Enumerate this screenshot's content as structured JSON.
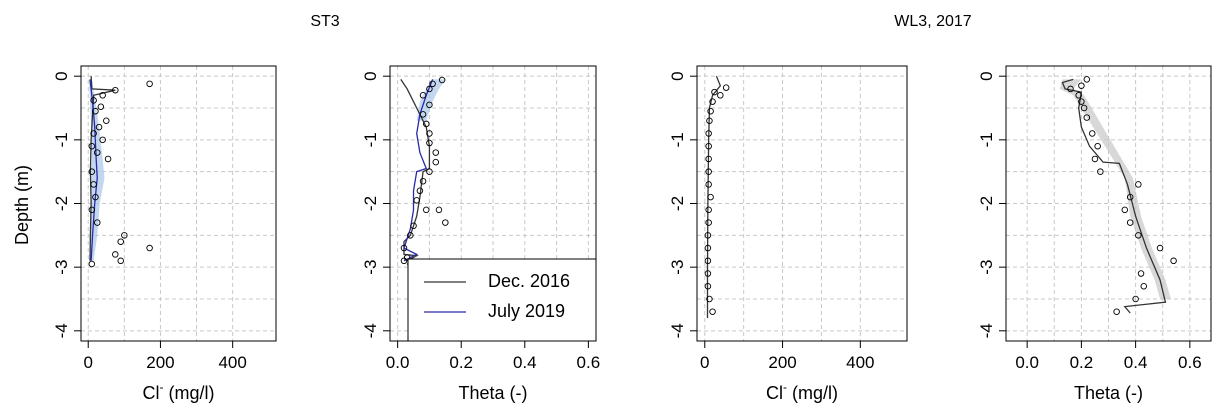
{
  "figure": {
    "group_titles": [
      "ST3",
      "WL3, 2017"
    ],
    "y_axis_label": "Depth (m)"
  },
  "legend": {
    "entries": [
      {
        "label": "Dec. 2016",
        "color": "#333333"
      },
      {
        "label": "July 2019",
        "color": "#2a2aa8"
      }
    ]
  },
  "colors": {
    "dec_line": "#333333",
    "july_line": "#2a2aa8",
    "band_blue": "#a9c8ea",
    "band_grey": "#c8c8c8",
    "grid": "#c8c8c8"
  },
  "chart_data": [
    {
      "type": "line",
      "group": "ST3",
      "xlabel_main": "Cl",
      "xlabel_sup": "-",
      "xlabel_rest": " (mg/l)",
      "xlim": [
        0,
        500
      ],
      "ylim": [
        -4,
        0
      ],
      "xticks": [
        0,
        200,
        400
      ],
      "xtick_labels": [
        "0",
        "200",
        "400"
      ],
      "yticks": [
        0,
        -1,
        -2,
        -3,
        -4
      ],
      "ytick_labels": [
        "0",
        "-1",
        "-2",
        "-3",
        "-4"
      ],
      "grid": true,
      "observed_points": [
        [
          170,
          -0.12
        ],
        [
          75,
          -0.22
        ],
        [
          40,
          -0.3
        ],
        [
          15,
          -0.38
        ],
        [
          35,
          -0.48
        ],
        [
          20,
          -0.55
        ],
        [
          50,
          -0.7
        ],
        [
          30,
          -0.8
        ],
        [
          15,
          -0.9
        ],
        [
          40,
          -1.0
        ],
        [
          10,
          -1.1
        ],
        [
          25,
          -1.2
        ],
        [
          55,
          -1.3
        ],
        [
          10,
          -1.5
        ],
        [
          15,
          -1.7
        ],
        [
          20,
          -1.9
        ],
        [
          10,
          -2.1
        ],
        [
          25,
          -2.3
        ],
        [
          100,
          -2.5
        ],
        [
          90,
          -2.6
        ],
        [
          170,
          -2.7
        ],
        [
          75,
          -2.8
        ],
        [
          90,
          -2.9
        ],
        [
          10,
          -2.95
        ]
      ],
      "series": [
        {
          "name": "Dec. 2016",
          "color": "#333333",
          "points": [
            [
              8,
              0
            ],
            [
              10,
              -0.2
            ],
            [
              75,
              -0.22
            ],
            [
              15,
              -0.3
            ],
            [
              12,
              -0.6
            ],
            [
              8,
              -1.0
            ],
            [
              6,
              -1.5
            ],
            [
              8,
              -2.0
            ],
            [
              6,
              -2.5
            ],
            [
              5,
              -2.9
            ]
          ]
        },
        {
          "name": "July 2019",
          "color": "#2a2aa8",
          "points": [
            [
              5,
              -0.05
            ],
            [
              12,
              -0.4
            ],
            [
              18,
              -0.8
            ],
            [
              22,
              -1.3
            ],
            [
              25,
              -1.6
            ],
            [
              18,
              -2.0
            ],
            [
              12,
              -2.5
            ],
            [
              8,
              -2.9
            ]
          ]
        }
      ],
      "band": {
        "color": "#a9c8ea",
        "left": [
          [
            2,
            -0.05
          ],
          [
            5,
            -0.4
          ],
          [
            8,
            -0.8
          ],
          [
            10,
            -1.3
          ],
          [
            8,
            -1.6
          ],
          [
            6,
            -2.0
          ],
          [
            4,
            -2.5
          ],
          [
            3,
            -2.9
          ]
        ],
        "right": [
          [
            10,
            -0.05
          ],
          [
            20,
            -0.4
          ],
          [
            30,
            -0.8
          ],
          [
            40,
            -1.3
          ],
          [
            45,
            -1.6
          ],
          [
            32,
            -2.0
          ],
          [
            25,
            -2.5
          ],
          [
            15,
            -2.9
          ]
        ]
      }
    },
    {
      "type": "line",
      "group": "ST3",
      "xlabel_main": "Theta (-)",
      "xlabel_sup": "",
      "xlabel_rest": "",
      "xlim": [
        0,
        0.6
      ],
      "ylim": [
        -4,
        0
      ],
      "xticks": [
        0,
        0.2,
        0.4,
        0.6
      ],
      "xtick_labels": [
        "0.0",
        "0.2",
        "0.4",
        "0.6"
      ],
      "yticks": [
        0,
        -1,
        -2,
        -3,
        -4
      ],
      "ytick_labels": [
        "0",
        "-1",
        "-2",
        "-3",
        "-4"
      ],
      "grid": true,
      "has_legend": true,
      "observed_points": [
        [
          0.14,
          -0.06
        ],
        [
          0.11,
          -0.12
        ],
        [
          0.1,
          -0.2
        ],
        [
          0.08,
          -0.3
        ],
        [
          0.1,
          -0.45
        ],
        [
          0.08,
          -0.6
        ],
        [
          0.09,
          -0.75
        ],
        [
          0.1,
          -0.9
        ],
        [
          0.1,
          -1.05
        ],
        [
          0.12,
          -1.2
        ],
        [
          0.12,
          -1.35
        ],
        [
          0.1,
          -1.5
        ],
        [
          0.08,
          -1.65
        ],
        [
          0.07,
          -1.8
        ],
        [
          0.06,
          -1.95
        ],
        [
          0.09,
          -2.1
        ],
        [
          0.13,
          -2.1
        ],
        [
          0.15,
          -2.3
        ],
        [
          0.05,
          -2.35
        ],
        [
          0.04,
          -2.5
        ],
        [
          0.02,
          -2.7
        ],
        [
          0.03,
          -2.85
        ],
        [
          0.02,
          -2.9
        ],
        [
          0.04,
          -2.95
        ]
      ],
      "series": [
        {
          "name": "Dec. 2016",
          "color": "#333333",
          "points": [
            [
              0.01,
              -0.05
            ],
            [
              0.03,
              -0.2
            ],
            [
              0.06,
              -0.5
            ],
            [
              0.09,
              -0.8
            ],
            [
              0.1,
              -1.1
            ],
            [
              0.1,
              -1.45
            ],
            [
              0.08,
              -1.5
            ],
            [
              0.07,
              -1.9
            ],
            [
              0.06,
              -2.2
            ],
            [
              0.04,
              -2.5
            ],
            [
              0.02,
              -2.6
            ],
            [
              0.02,
              -2.8
            ],
            [
              0.06,
              -2.82
            ],
            [
              0.03,
              -2.9
            ]
          ]
        },
        {
          "name": "July 2019",
          "color": "#2a2aa8",
          "points": [
            [
              0.11,
              -0.05
            ],
            [
              0.09,
              -0.3
            ],
            [
              0.07,
              -0.6
            ],
            [
              0.06,
              -0.9
            ],
            [
              0.07,
              -1.2
            ],
            [
              0.09,
              -1.45
            ],
            [
              0.06,
              -1.5
            ],
            [
              0.05,
              -1.8
            ],
            [
              0.05,
              -2.1
            ],
            [
              0.04,
              -2.4
            ],
            [
              0.03,
              -2.55
            ],
            [
              0.02,
              -2.7
            ],
            [
              0.06,
              -2.8
            ],
            [
              0.02,
              -2.9
            ]
          ]
        }
      ],
      "band": {
        "color": "#a9c8ea",
        "left": [
          [
            0.11,
            -0.05
          ],
          [
            0.09,
            -0.2
          ],
          [
            0.07,
            -0.4
          ],
          [
            0.06,
            -0.7
          ]
        ],
        "right": [
          [
            0.15,
            -0.05
          ],
          [
            0.13,
            -0.2
          ],
          [
            0.11,
            -0.4
          ],
          [
            0.09,
            -0.7
          ]
        ]
      }
    },
    {
      "type": "line",
      "group": "WL3, 2017",
      "xlabel_main": "Cl",
      "xlabel_sup": "-",
      "xlabel_rest": " (mg/l)",
      "xlim": [
        0,
        500
      ],
      "ylim": [
        -4,
        0
      ],
      "xticks": [
        0,
        200,
        400
      ],
      "xtick_labels": [
        "0",
        "200",
        "400"
      ],
      "yticks": [
        0,
        -1,
        -2,
        -3,
        -4
      ],
      "ytick_labels": [
        "0",
        "-1",
        "-2",
        "-3",
        "-4"
      ],
      "grid": true,
      "observed_points": [
        [
          55,
          -0.18
        ],
        [
          40,
          -0.3
        ],
        [
          25,
          -0.25
        ],
        [
          20,
          -0.4
        ],
        [
          15,
          -0.55
        ],
        [
          12,
          -0.7
        ],
        [
          10,
          -0.9
        ],
        [
          10,
          -1.1
        ],
        [
          10,
          -1.3
        ],
        [
          10,
          -1.5
        ],
        [
          10,
          -1.7
        ],
        [
          15,
          -1.9
        ],
        [
          10,
          -2.1
        ],
        [
          10,
          -2.3
        ],
        [
          8,
          -2.5
        ],
        [
          8,
          -2.7
        ],
        [
          8,
          -2.9
        ],
        [
          8,
          -3.1
        ],
        [
          8,
          -3.3
        ],
        [
          12,
          -3.5
        ],
        [
          20,
          -3.7
        ]
      ],
      "series": [
        {
          "name": "Dec. 2016",
          "color": "#333333",
          "points": [
            [
              30,
              0
            ],
            [
              40,
              -0.15
            ],
            [
              20,
              -0.3
            ],
            [
              12,
              -0.5
            ],
            [
              10,
              -1.0
            ],
            [
              8,
              -2.0
            ],
            [
              7,
              -3.0
            ],
            [
              7,
              -3.8
            ]
          ]
        }
      ]
    },
    {
      "type": "line",
      "group": "WL3, 2017",
      "xlabel_main": "Theta (-)",
      "xlabel_sup": "",
      "xlabel_rest": "",
      "xlim": [
        -0.05,
        0.65
      ],
      "ylim": [
        -4,
        0
      ],
      "xticks": [
        0,
        0.2,
        0.4,
        0.6
      ],
      "xtick_labels": [
        "0.0",
        "0.2",
        "0.4",
        "0.6"
      ],
      "yticks": [
        0,
        -1,
        -2,
        -3,
        -4
      ],
      "ytick_labels": [
        "0",
        "-1",
        "-2",
        "-3",
        "-4"
      ],
      "grid": true,
      "observed_points": [
        [
          0.22,
          -0.05
        ],
        [
          0.2,
          -0.15
        ],
        [
          0.16,
          -0.2
        ],
        [
          0.19,
          -0.3
        ],
        [
          0.2,
          -0.4
        ],
        [
          0.21,
          -0.5
        ],
        [
          0.22,
          -0.65
        ],
        [
          0.24,
          -0.9
        ],
        [
          0.26,
          -1.1
        ],
        [
          0.25,
          -1.3
        ],
        [
          0.27,
          -1.5
        ],
        [
          0.41,
          -1.7
        ],
        [
          0.38,
          -1.9
        ],
        [
          0.36,
          -2.1
        ],
        [
          0.38,
          -2.3
        ],
        [
          0.41,
          -2.5
        ],
        [
          0.49,
          -2.7
        ],
        [
          0.54,
          -2.9
        ],
        [
          0.42,
          -3.1
        ],
        [
          0.43,
          -3.3
        ],
        [
          0.4,
          -3.5
        ],
        [
          0.33,
          -3.7
        ]
      ],
      "series": [
        {
          "name": "Dec. 2016",
          "color": "#333333",
          "points": [
            [
              0.17,
              -0.05
            ],
            [
              0.13,
              -0.1
            ],
            [
              0.14,
              -0.2
            ],
            [
              0.2,
              -0.25
            ],
            [
              0.19,
              -0.5
            ],
            [
              0.2,
              -0.8
            ],
            [
              0.23,
              -1.1
            ],
            [
              0.28,
              -1.35
            ],
            [
              0.34,
              -1.37
            ],
            [
              0.37,
              -1.7
            ],
            [
              0.4,
              -2.2
            ],
            [
              0.44,
              -2.7
            ],
            [
              0.49,
              -3.2
            ],
            [
              0.51,
              -3.55
            ],
            [
              0.36,
              -3.62
            ],
            [
              0.38,
              -3.72
            ]
          ]
        }
      ],
      "band": {
        "color": "#c8c8c8",
        "left": [
          [
            0.13,
            -0.05
          ],
          [
            0.12,
            -0.2
          ],
          [
            0.17,
            -0.3
          ],
          [
            0.36,
            -1.6
          ],
          [
            0.38,
            -2.2
          ],
          [
            0.42,
            -2.7
          ],
          [
            0.47,
            -3.2
          ],
          [
            0.49,
            -3.5
          ]
        ],
        "right": [
          [
            0.2,
            -0.05
          ],
          [
            0.17,
            -0.2
          ],
          [
            0.21,
            -0.3
          ],
          [
            0.39,
            -1.6
          ],
          [
            0.42,
            -2.2
          ],
          [
            0.46,
            -2.7
          ],
          [
            0.51,
            -3.2
          ],
          [
            0.53,
            -3.5
          ]
        ]
      }
    }
  ]
}
